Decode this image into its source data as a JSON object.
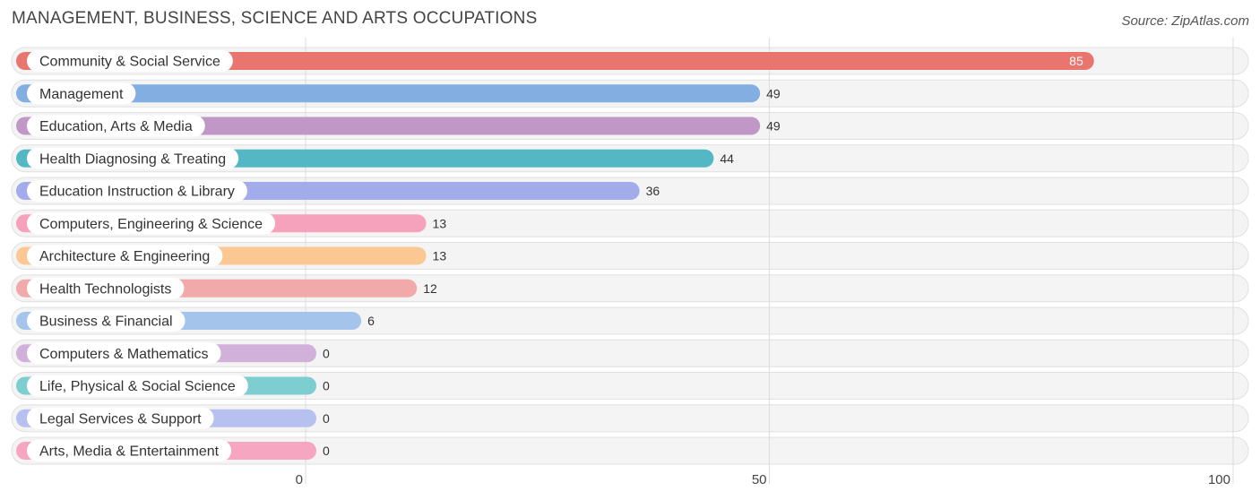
{
  "header": {
    "title": "MANAGEMENT, BUSINESS, SCIENCE AND ARTS OCCUPATIONS",
    "source": "Source: ZipAtlas.com"
  },
  "chart_data": {
    "type": "bar",
    "orientation": "horizontal",
    "categories": [
      "Community & Social Service",
      "Management",
      "Education, Arts & Media",
      "Health Diagnosing & Treating",
      "Education Instruction & Library",
      "Computers, Engineering & Science",
      "Architecture & Engineering",
      "Health Technologists",
      "Business & Financial",
      "Computers & Mathematics",
      "Life, Physical & Social Science",
      "Legal Services & Support",
      "Arts, Media & Entertainment"
    ],
    "values": [
      85,
      49,
      49,
      44,
      36,
      13,
      13,
      12,
      6,
      0,
      0,
      0,
      0
    ],
    "colors": [
      "#e8766f",
      "#82aee2",
      "#c197c8",
      "#53b7c4",
      "#a3acea",
      "#f7a2bd",
      "#fbc894",
      "#f2a9a9",
      "#a5c4ec",
      "#d1b1d9",
      "#7dcdd1",
      "#b7c1ef",
      "#f7a6c1"
    ],
    "xlim": [
      0,
      100
    ],
    "xticks": [
      0,
      50,
      100
    ],
    "grid": true
  }
}
